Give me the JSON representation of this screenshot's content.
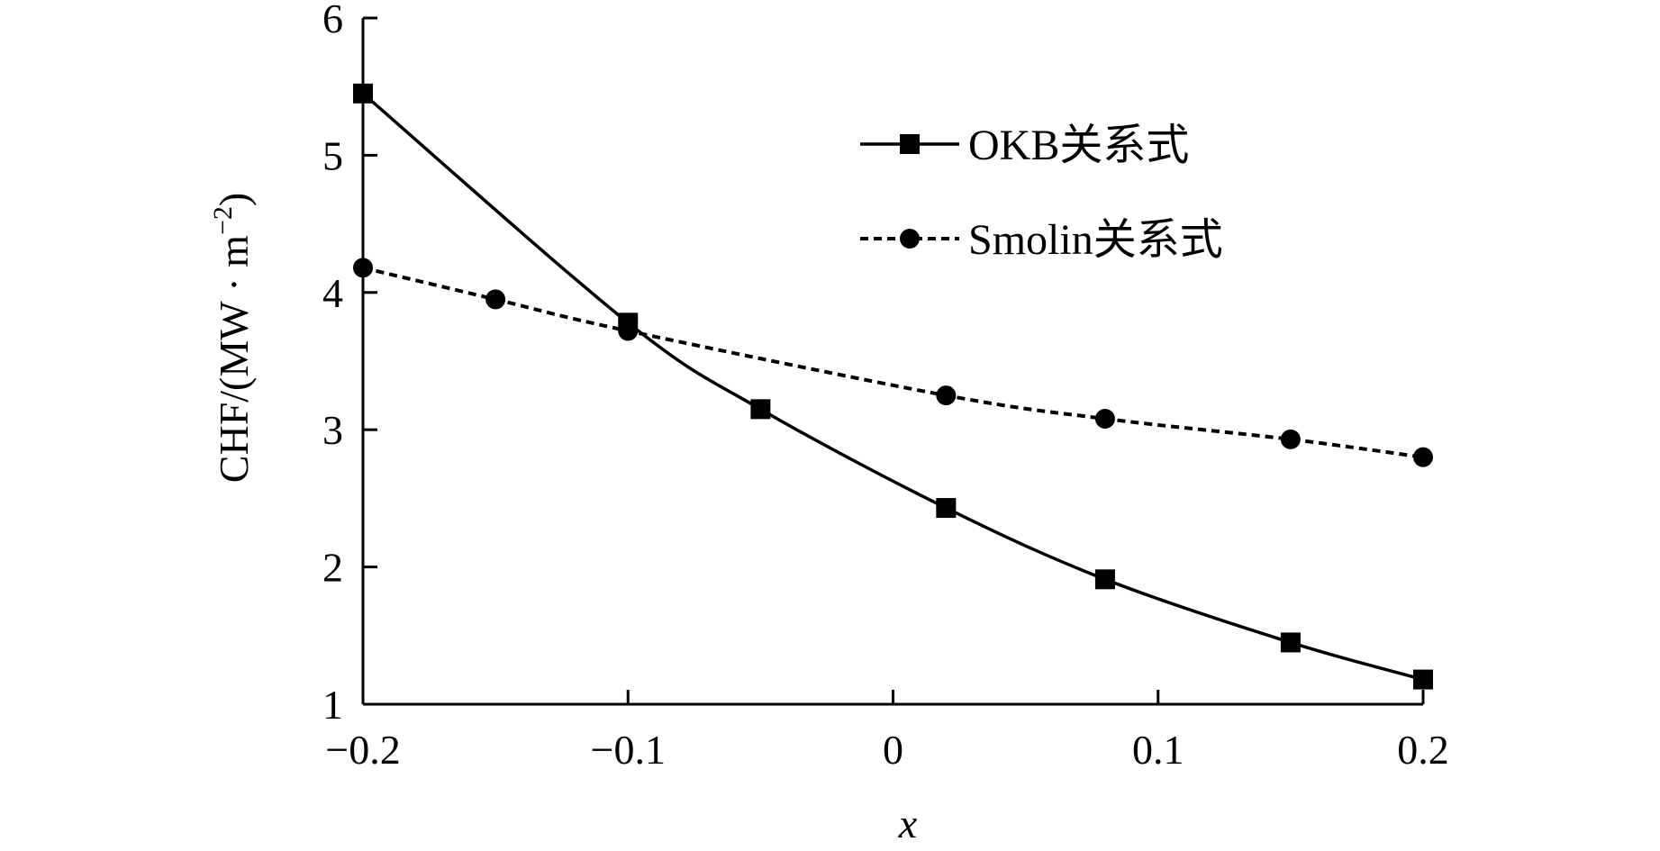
{
  "chart_data": {
    "type": "line",
    "xlabel": "x",
    "ylabel": "CHF/(MW · m",
    "ylabel_sup": "−2",
    "ylabel_close": ")",
    "xlim": [
      -0.2,
      0.2
    ],
    "ylim": [
      1,
      6
    ],
    "xticks": [
      -0.2,
      -0.1,
      0,
      0.1,
      0.2
    ],
    "xtick_labels": [
      "−0.2",
      "−0.1",
      "0",
      "0.1",
      "0.2"
    ],
    "yticks": [
      1,
      2,
      3,
      4,
      5,
      6
    ],
    "ytick_labels": [
      "1",
      "2",
      "3",
      "4",
      "5",
      "6"
    ],
    "grid": false,
    "legend_position": "top-right",
    "series": [
      {
        "name": "OKB关系式",
        "line_style": "solid",
        "marker": "square",
        "color": "#000000",
        "x": [
          -0.2,
          -0.1,
          -0.05,
          0.02,
          0.08,
          0.15,
          0.2
        ],
        "y": [
          5.45,
          3.78,
          3.15,
          2.43,
          1.91,
          1.45,
          1.18
        ]
      },
      {
        "name": "Smolin关系式",
        "line_style": "dashed",
        "marker": "circle",
        "color": "#000000",
        "x": [
          -0.2,
          -0.15,
          -0.1,
          0.02,
          0.08,
          0.15,
          0.2
        ],
        "y": [
          4.18,
          3.95,
          3.72,
          3.25,
          3.08,
          2.93,
          2.8
        ]
      }
    ]
  }
}
